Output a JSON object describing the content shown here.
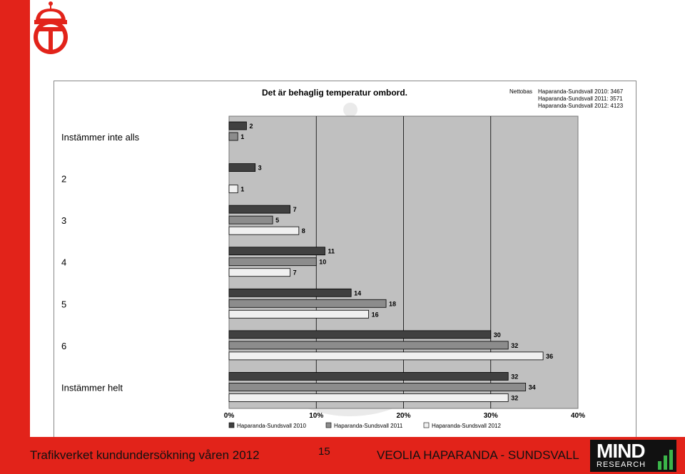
{
  "footer": {
    "left_text": "Trafikverket kundundersökning våren 2012",
    "page_number": "15",
    "right_text": "VEOLIA HAPARANDA - SUNDSVALL",
    "logo_main": "MIND",
    "logo_sub": "RESEARCH"
  },
  "colors": {
    "brand_red": "#e2231a",
    "plot_bg": "#c0c0c0",
    "series_2010": "#404040",
    "series_2011": "#8c8c8c",
    "series_2012": "#f0f0f0"
  },
  "icons": [
    "trafikverket-crown-logo-icon",
    "mind-research-logo-icon"
  ],
  "chart_data": {
    "type": "bar",
    "orientation": "horizontal",
    "title": "Det är behaglig temperatur ombord.",
    "base_label": "Nettobas",
    "base_lines": [
      "Haparanda-Sundsvall 2010: 3467",
      "Haparanda-Sundsvall 2011: 3571",
      "Haparanda-Sundsvall 2012: 4123"
    ],
    "categories": [
      "Instämmer inte alls",
      "2",
      "3",
      "4",
      "5",
      "6",
      "Instämmer helt"
    ],
    "series": [
      {
        "name": "Haparanda-Sundsvall 2010",
        "values": [
          2,
          3,
          7,
          11,
          14,
          30,
          32
        ]
      },
      {
        "name": "Haparanda-Sundsvall 2011",
        "values": [
          1,
          null,
          5,
          10,
          18,
          32,
          34
        ]
      },
      {
        "name": "Haparanda-Sundsvall 2012",
        "values": [
          null,
          1,
          8,
          7,
          16,
          36,
          32
        ]
      }
    ],
    "xlim": [
      0,
      40
    ],
    "xticks": [
      0,
      10,
      20,
      30,
      40
    ],
    "xtick_labels": [
      "0%",
      "10%",
      "20%",
      "30%",
      "40%"
    ],
    "grid": true,
    "legend_position": "bottom"
  }
}
